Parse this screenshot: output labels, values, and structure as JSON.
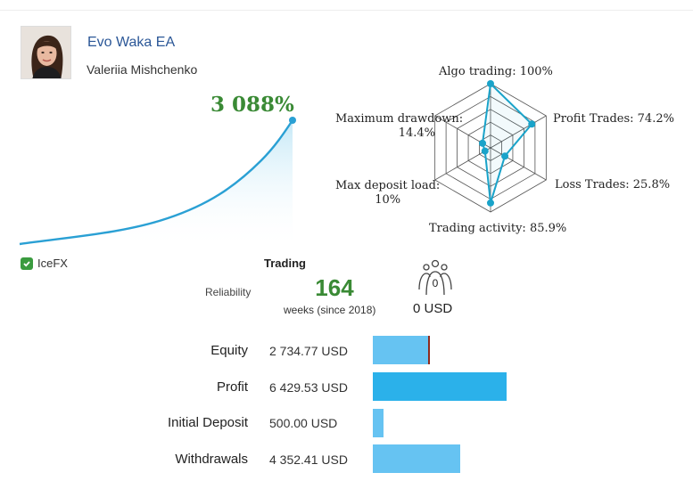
{
  "header": {
    "title": "Evo Waka EA",
    "author": "Valeriia Mishchenko"
  },
  "growth": {
    "value": "3 088%",
    "broker": "IceFX",
    "line_color": "#2aa0d4"
  },
  "radar": {
    "axes": [
      {
        "label": "Algo trading: 100%",
        "value": 100
      },
      {
        "label": "Profit Trades: 74.2%",
        "value": 74.2
      },
      {
        "label": "Loss Trades: 25.8%",
        "value": 25.8
      },
      {
        "label": "Trading activity: 85.9%",
        "value": 85.9
      },
      {
        "label": "Max deposit load:",
        "label2": "10%",
        "value": 10
      },
      {
        "label": "Maximum drawdown:",
        "label2": "14.4%",
        "value": 14.4
      }
    ],
    "color": "#1aa3c9"
  },
  "stats": {
    "period_label": "Trading",
    "reliability_label": "Reliability",
    "weeks_value": "164",
    "weeks_sub": "weeks (since 2018)",
    "subscribers_count": "0",
    "subscribers_value": "0 USD"
  },
  "balances": [
    {
      "label": "Equity",
      "value": "2 734.77 USD",
      "ratio": 0.365
    },
    {
      "label": "Profit",
      "value": "6 429.53 USD",
      "ratio": 0.855
    },
    {
      "label": "Initial Deposit",
      "value": "500.00 USD",
      "ratio": 0.07
    },
    {
      "label": "Withdrawals",
      "value": "4 352.41 USD",
      "ratio": 0.56
    }
  ]
}
